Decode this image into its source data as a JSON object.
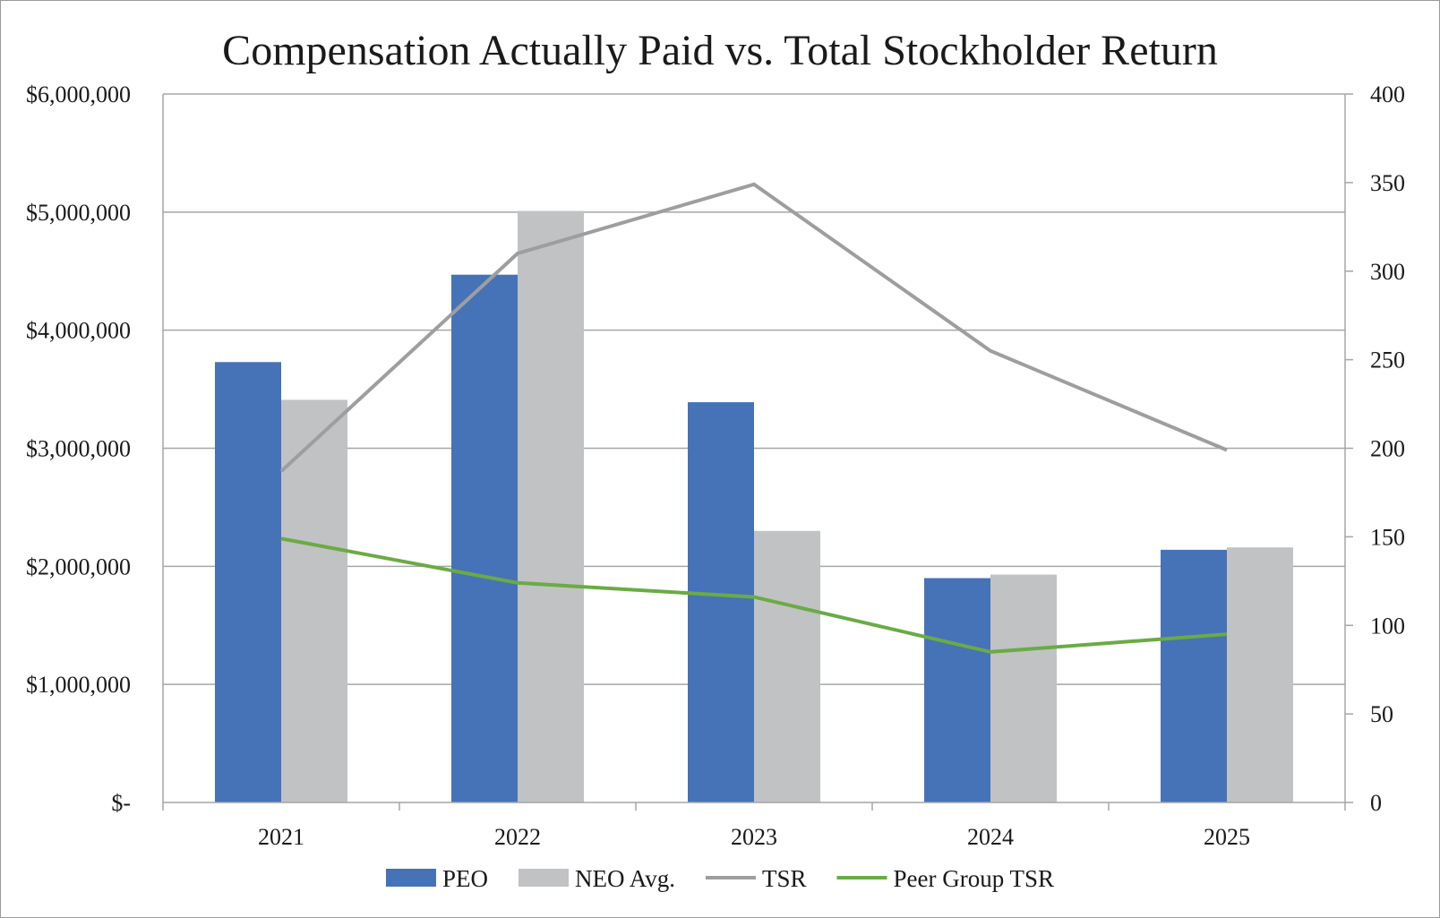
{
  "chart_data": {
    "type": "bar",
    "title": "Compensation Actually Paid vs. Total Stockholder Return",
    "categories": [
      "2021",
      "2022",
      "2023",
      "2024",
      "2025"
    ],
    "series": [
      {
        "name": "PEO",
        "type": "bar",
        "axis": "left",
        "color": "#4672b8",
        "values": [
          3730000,
          4470000,
          3390000,
          1900000,
          2140000
        ]
      },
      {
        "name": "NEO Avg.",
        "type": "bar",
        "axis": "left",
        "color": "#c1c2c4",
        "values": [
          3410000,
          5010000,
          2300000,
          1930000,
          2160000
        ]
      },
      {
        "name": "TSR",
        "type": "line",
        "axis": "right",
        "color": "#9d9e9f",
        "values": [
          187,
          310,
          349,
          255,
          199
        ]
      },
      {
        "name": "Peer Group TSR",
        "type": "line",
        "axis": "right",
        "color": "#6aab45",
        "values": [
          149,
          124,
          116,
          85,
          95
        ]
      }
    ],
    "y_left": {
      "ylim": [
        0,
        6000000
      ],
      "ticks": [
        0,
        1000000,
        2000000,
        3000000,
        4000000,
        5000000,
        6000000
      ],
      "tick_labels": [
        "$-",
        "$1,000,000",
        "$2,000,000",
        "$3,000,000",
        "$4,000,000",
        "$5,000,000",
        "$6,000,000"
      ]
    },
    "y_right": {
      "ylim": [
        0,
        400
      ],
      "ticks": [
        0,
        50,
        100,
        150,
        200,
        250,
        300,
        350,
        400
      ],
      "tick_labels": [
        "0",
        "50",
        "100",
        "150",
        "200",
        "250",
        "300",
        "350",
        "400"
      ]
    },
    "grid": true,
    "legend_position": "bottom"
  }
}
